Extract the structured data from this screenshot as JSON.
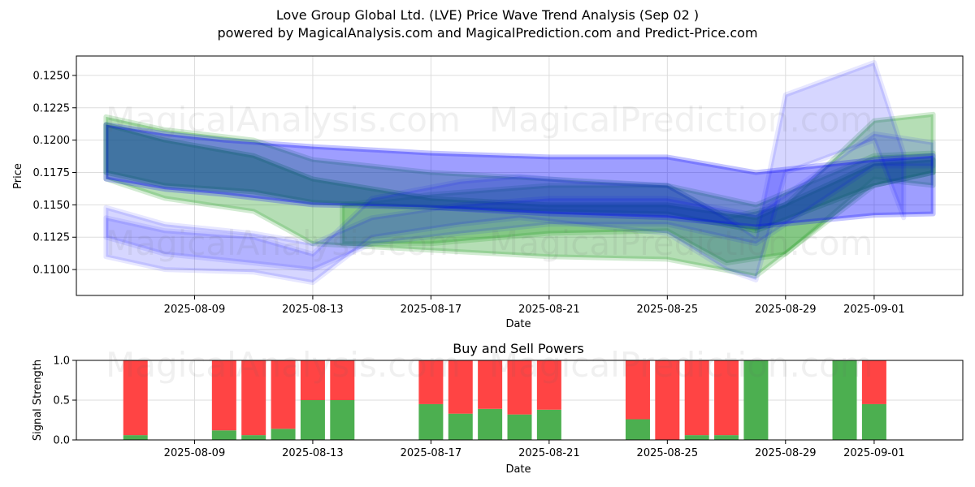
{
  "header": {
    "title": "Love Group Global Ltd. (LVE) Price Wave Trend Analysis (Sep 02 )",
    "subtitle": "powered by MagicalAnalysis.com and MagicalPrediction.com and Predict-Price.com"
  },
  "watermarks": [
    "MagicalAnalysis.com",
    "MagicalPrediction.com"
  ],
  "colors": {
    "green_band": "#2ca02c",
    "blue_band": "#0000ff",
    "buy": "#4caf50",
    "sell": "#ff4444",
    "grid": "#dddddd"
  },
  "chart_data": [
    {
      "type": "area",
      "title": "",
      "xlabel": "Date",
      "ylabel": "Price",
      "x_ticks": [
        "2025-08-09",
        "2025-08-13",
        "2025-08-17",
        "2025-08-21",
        "2025-08-25",
        "2025-08-29",
        "2025-09-01"
      ],
      "y_ticks": [
        "0.1100",
        "0.1125",
        "0.1150",
        "0.1175",
        "0.1200",
        "0.1225",
        "0.1250"
      ],
      "xlim": [
        "2025-08-05",
        "2025-09-04"
      ],
      "ylim": [
        0.108,
        0.1265
      ],
      "grid": true,
      "series": [
        {
          "kind": "green",
          "x": [
            "2025-08-06",
            "2025-08-08",
            "2025-08-11",
            "2025-08-13",
            "2025-08-17",
            "2025-08-21",
            "2025-08-25",
            "2025-08-28",
            "2025-09-01",
            "2025-09-03"
          ],
          "upper": [
            0.1212,
            0.12,
            0.1188,
            0.117,
            0.1155,
            0.115,
            0.115,
            0.114,
            0.1182,
            0.1185
          ],
          "lower": [
            0.1175,
            0.1165,
            0.116,
            0.1152,
            0.1148,
            0.1145,
            0.1143,
            0.113,
            0.1165,
            0.1175
          ]
        },
        {
          "kind": "green",
          "x": [
            "2025-08-06",
            "2025-08-08",
            "2025-08-11",
            "2025-08-13",
            "2025-08-17",
            "2025-08-21",
            "2025-08-25",
            "2025-08-28",
            "2025-09-01",
            "2025-09-03"
          ],
          "upper": [
            0.1218,
            0.1208,
            0.12,
            0.1185,
            0.1175,
            0.117,
            0.1165,
            0.115,
            0.1188,
            0.119
          ],
          "lower": [
            0.117,
            0.1155,
            0.1145,
            0.112,
            0.1115,
            0.111,
            0.1108,
            0.1095,
            0.1165,
            0.1175
          ]
        },
        {
          "kind": "green",
          "x": [
            "2025-08-14",
            "2025-08-17",
            "2025-08-21",
            "2025-08-25",
            "2025-08-27",
            "2025-08-29",
            "2025-09-01",
            "2025-09-03"
          ],
          "upper": [
            0.115,
            0.1158,
            0.1165,
            0.1165,
            0.114,
            0.115,
            0.1215,
            0.122
          ],
          "lower": [
            0.112,
            0.112,
            0.1128,
            0.113,
            0.1105,
            0.1112,
            0.117,
            0.1165
          ]
        },
        {
          "kind": "blue",
          "x": [
            "2025-08-06",
            "2025-08-08",
            "2025-08-10",
            "2025-08-13",
            "2025-08-17",
            "2025-08-21",
            "2025-08-25",
            "2025-08-28",
            "2025-09-01",
            "2025-09-03"
          ],
          "upper": [
            0.1212,
            0.1205,
            0.12,
            0.1195,
            0.119,
            0.1187,
            0.1187,
            0.1175,
            0.1185,
            0.1188
          ],
          "lower": [
            0.117,
            0.1162,
            0.1158,
            0.115,
            0.1148,
            0.1143,
            0.114,
            0.1133,
            0.1142,
            0.1143
          ]
        },
        {
          "kind": "blue",
          "x": [
            "2025-08-06",
            "2025-08-08",
            "2025-08-11",
            "2025-08-13",
            "2025-08-15",
            "2025-08-18",
            "2025-08-20",
            "2025-08-22",
            "2025-08-25",
            "2025-08-27",
            "2025-08-28",
            "2025-08-29",
            "2025-09-01",
            "2025-09-02"
          ],
          "upper": [
            0.114,
            0.113,
            0.1125,
            0.1112,
            0.1155,
            0.1168,
            0.1172,
            0.1168,
            0.1165,
            0.114,
            0.1125,
            0.1235,
            0.126,
            0.119
          ],
          "lower": [
            0.111,
            0.11,
            0.1098,
            0.109,
            0.1125,
            0.1135,
            0.114,
            0.1135,
            0.1128,
            0.11,
            0.1092,
            0.1175,
            0.12,
            0.114
          ]
        },
        {
          "kind": "blue",
          "x": [
            "2025-08-06",
            "2025-08-08",
            "2025-08-11",
            "2025-08-13",
            "2025-08-15",
            "2025-08-18",
            "2025-08-21",
            "2025-08-25",
            "2025-08-28",
            "2025-09-01",
            "2025-09-03"
          ],
          "upper": [
            0.1148,
            0.1135,
            0.1128,
            0.112,
            0.114,
            0.115,
            0.1155,
            0.1155,
            0.1142,
            0.1205,
            0.1198
          ],
          "lower": [
            0.1125,
            0.1112,
            0.1105,
            0.11,
            0.112,
            0.1128,
            0.1135,
            0.1135,
            0.112,
            0.118,
            0.118
          ]
        }
      ]
    },
    {
      "type": "bar",
      "title": "Buy and Sell Powers",
      "xlabel": "Date",
      "ylabel": "Signal Strength",
      "x_ticks": [
        "2025-08-09",
        "2025-08-13",
        "2025-08-17",
        "2025-08-21",
        "2025-08-25",
        "2025-08-29",
        "2025-09-01"
      ],
      "y_ticks": [
        "0.0",
        "0.5",
        "1.0"
      ],
      "ylim": [
        0,
        1
      ],
      "categories": [
        "2025-08-07",
        "2025-08-10",
        "2025-08-11",
        "2025-08-12",
        "2025-08-13",
        "2025-08-14",
        "2025-08-17",
        "2025-08-18",
        "2025-08-19",
        "2025-08-20",
        "2025-08-21",
        "2025-08-24",
        "2025-08-25",
        "2025-08-26",
        "2025-08-27",
        "2025-08-28",
        "2025-08-31",
        "2025-09-01"
      ],
      "series": [
        {
          "name": "Buy",
          "values": [
            0.06,
            0.12,
            0.06,
            0.14,
            0.5,
            0.5,
            0.45,
            0.33,
            0.39,
            0.32,
            0.38,
            0.26,
            0.0,
            0.06,
            0.06,
            1.0,
            1.0,
            0.45
          ]
        },
        {
          "name": "Sell",
          "values": [
            0.94,
            0.88,
            0.94,
            0.86,
            0.5,
            0.5,
            0.55,
            0.67,
            0.61,
            0.68,
            0.62,
            0.74,
            1.0,
            0.94,
            0.94,
            0.0,
            0.0,
            0.55
          ]
        }
      ]
    }
  ]
}
